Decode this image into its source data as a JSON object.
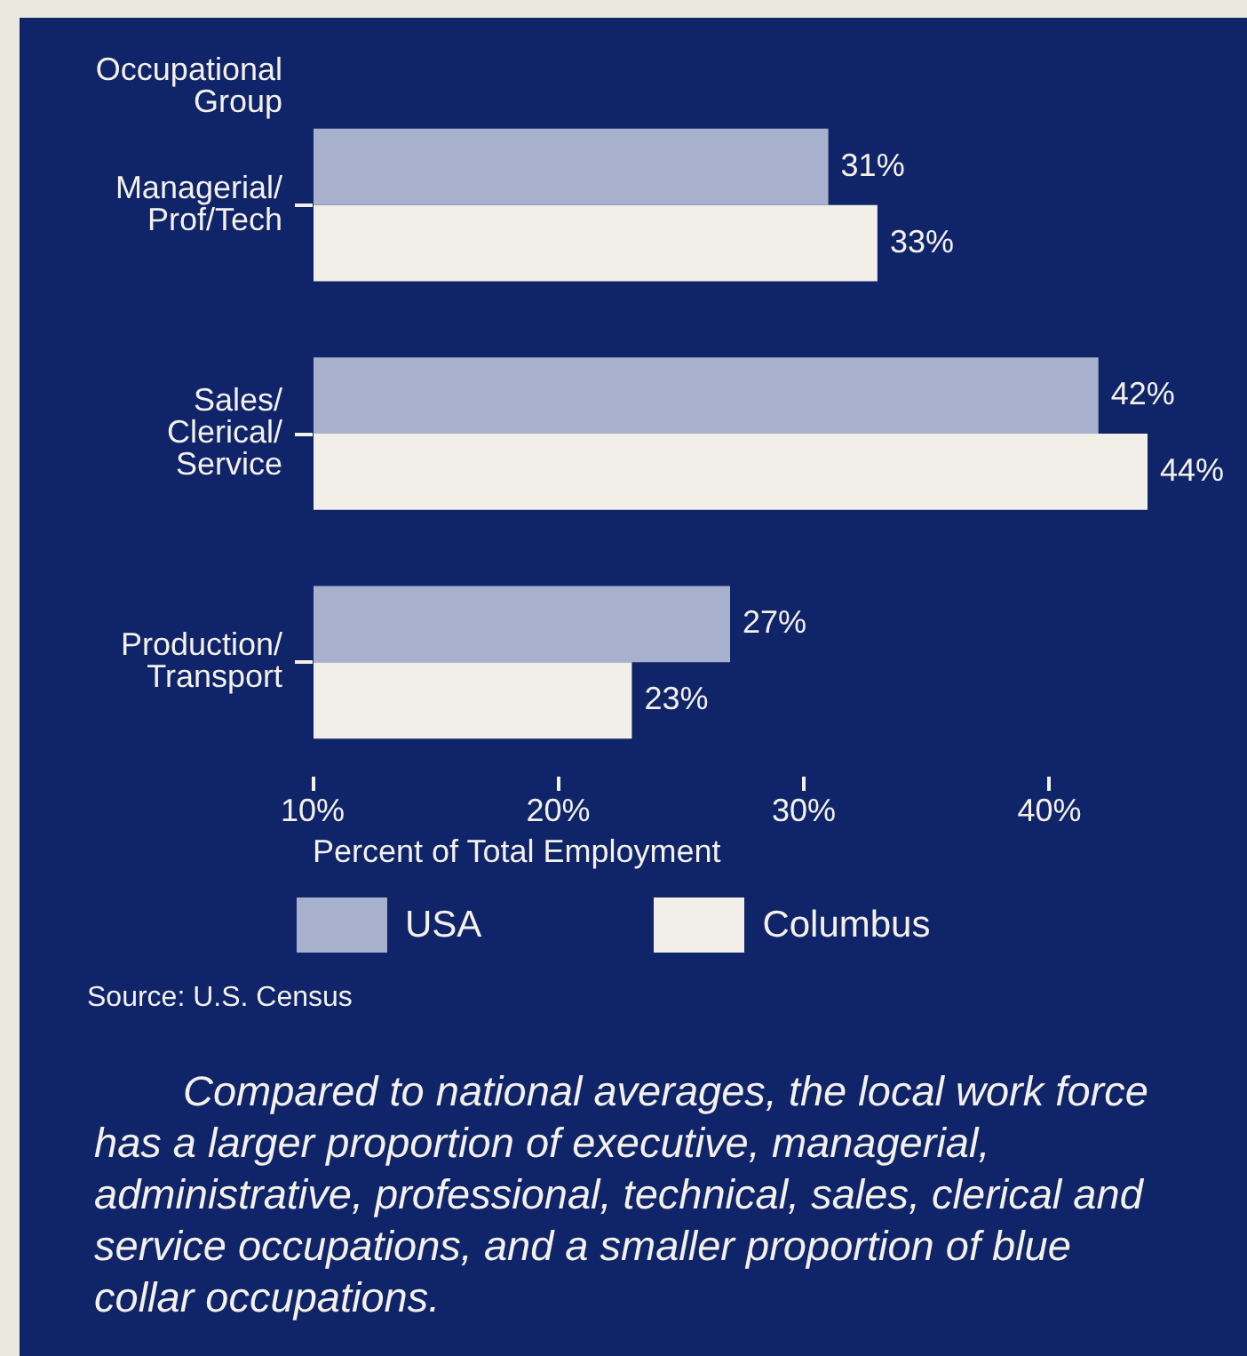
{
  "chart_data": {
    "type": "bar",
    "orientation": "horizontal",
    "categories": [
      "Managerial/ Prof/Tech",
      "Sales/ Clerical/ Service",
      "Production/ Transport"
    ],
    "series": [
      {
        "name": "USA",
        "color": "#a7b1cd",
        "values": [
          31,
          42,
          27
        ],
        "value_labels": [
          "31%",
          "42%",
          "27%"
        ]
      },
      {
        "name": "Columbus",
        "color": "#f1efe8",
        "values": [
          33,
          44,
          23
        ],
        "value_labels": [
          "33%",
          "44%",
          "23%"
        ]
      }
    ],
    "xlim": [
      10,
      44
    ],
    "xticks": [
      {
        "value": 10,
        "label": "10%"
      },
      {
        "value": 20,
        "label": "20%"
      },
      {
        "value": 30,
        "label": "30%"
      },
      {
        "value": 40,
        "label": "40%"
      }
    ],
    "xlabel": "Percent of Total Employment",
    "ylabel": "Occupational Group",
    "legend": "bottom",
    "annotations": [
      "Source: U.S. Census",
      "Compared to national averages, the local work force has a larger proportion of executive, managerial, administrative, professional, technical, sales, clerical and service occupations, and a smaller proportion of blue collar occupations."
    ]
  }
}
